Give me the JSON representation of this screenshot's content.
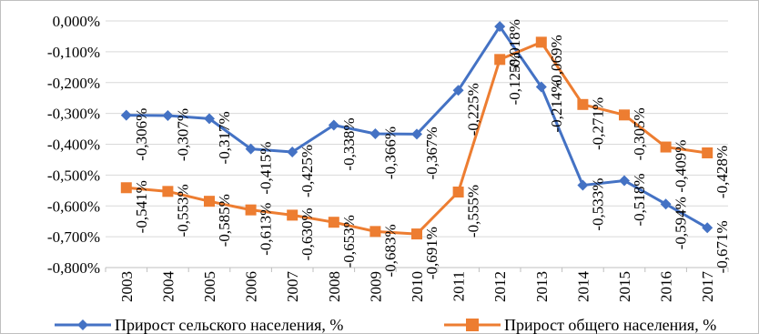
{
  "chart_data": {
    "type": "line",
    "categories": [
      "2003",
      "2004",
      "2005",
      "2006",
      "2007",
      "2008",
      "2009",
      "2010",
      "2011",
      "2012",
      "2013",
      "2014",
      "2015",
      "2016",
      "2017"
    ],
    "ylim": [
      -0.8,
      0.0
    ],
    "yticks": [
      0.0,
      -0.1,
      -0.2,
      -0.3,
      -0.4,
      -0.5,
      -0.6,
      -0.7,
      -0.8
    ],
    "ytick_labels": [
      "0,000%",
      "-0,100%",
      "-0,200%",
      "-0,300%",
      "-0,400%",
      "-0,500%",
      "-0,600%",
      "-0,700%",
      "-0,800%"
    ],
    "grid": true,
    "legend_position": "bottom",
    "series": [
      {
        "name": "Прирост сельского населения, %",
        "color": "#4472C4",
        "marker": "diamond",
        "values": [
          -0.306,
          -0.307,
          -0.317,
          -0.415,
          -0.425,
          -0.338,
          -0.366,
          -0.367,
          -0.225,
          -0.018,
          -0.214,
          -0.533,
          -0.518,
          -0.594,
          -0.671
        ],
        "labels": [
          "-0,306%",
          "-0,307%",
          "-0,317%",
          "-0,415%",
          "-0,425%",
          "-0,338%",
          "-0,366%",
          "-0,367%",
          "-0,225%",
          "-0,018%",
          "-0,214%",
          "-0,533%",
          "-0,518%",
          "-0,594%",
          "-0,671%"
        ]
      },
      {
        "name": "Прирост общего населения, %",
        "color": "#ED7D31",
        "marker": "square",
        "values": [
          -0.541,
          -0.553,
          -0.585,
          -0.613,
          -0.63,
          -0.653,
          -0.683,
          -0.691,
          -0.555,
          -0.125,
          -0.069,
          -0.271,
          -0.305,
          -0.409,
          -0.428
        ],
        "labels": [
          "-0,541%",
          "-0,553%",
          "-0,585%",
          "-0,613%",
          "-0,630%",
          "-0,653%",
          "-0,683%",
          "-0,691%",
          "-0,555%",
          "-0,125%",
          "-0,069%",
          "-0,271%",
          "-0,305%",
          "-0,409%",
          "-0,428%"
        ]
      }
    ]
  }
}
